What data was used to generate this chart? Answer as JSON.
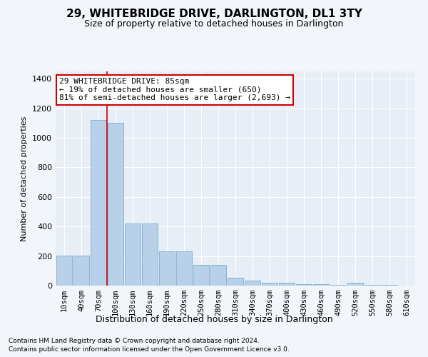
{
  "title": "29, WHITEBRIDGE DRIVE, DARLINGTON, DL1 3TY",
  "subtitle": "Size of property relative to detached houses in Darlington",
  "xlabel": "Distribution of detached houses by size in Darlington",
  "ylabel": "Number of detached properties",
  "categories": [
    "10sqm",
    "40sqm",
    "70sqm",
    "100sqm",
    "130sqm",
    "160sqm",
    "190sqm",
    "220sqm",
    "250sqm",
    "280sqm",
    "310sqm",
    "340sqm",
    "370sqm",
    "400sqm",
    "430sqm",
    "460sqm",
    "490sqm",
    "520sqm",
    "550sqm",
    "580sqm",
    "610sqm"
  ],
  "values": [
    205,
    205,
    1120,
    1100,
    420,
    420,
    230,
    230,
    140,
    140,
    55,
    35,
    20,
    20,
    10,
    10,
    5,
    20,
    5,
    5,
    0
  ],
  "bar_color": "#b8d0e8",
  "bar_edge_color": "#7aadd4",
  "background_color": "#f2f5fa",
  "axes_bg_color": "#e8eef6",
  "grid_color": "#ffffff",
  "red_line_x": 2.5,
  "annotation_text": "29 WHITEBRIDGE DRIVE: 85sqm\n← 19% of detached houses are smaller (650)\n81% of semi-detached houses are larger (2,693) →",
  "annotation_box_color": "#ffffff",
  "annotation_box_edge": "#cc0000",
  "ylim": [
    0,
    1450
  ],
  "yticks": [
    0,
    200,
    400,
    600,
    800,
    1000,
    1200,
    1400
  ],
  "footer1": "Contains HM Land Registry data © Crown copyright and database right 2024.",
  "footer2": "Contains public sector information licensed under the Open Government Licence v3.0."
}
